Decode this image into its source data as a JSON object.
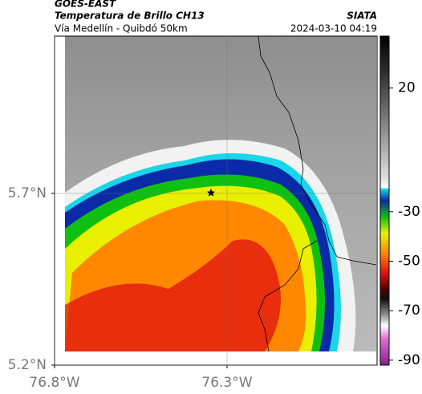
{
  "header": {
    "satellite": "GOES-EAST",
    "product": "Temperatura de Brillo CH13",
    "region": "Vía Medellín - Quibdó 50km",
    "source": "SIATA",
    "datetime": "2024-03-10 04:19"
  },
  "map": {
    "xlim": [
      -76.8,
      -75.865
    ],
    "ylim": [
      5.2,
      6.158
    ],
    "xticks": [
      {
        "value": -76.8,
        "label": "76.8°W"
      },
      {
        "value": -76.3,
        "label": "76.3°W"
      }
    ],
    "yticks": [
      {
        "value": 5.7,
        "label": "5.7°N"
      },
      {
        "value": 5.2,
        "label": "5.2°N"
      }
    ],
    "grid": true
  },
  "colorbar": {
    "clim": [
      -92,
      41
    ],
    "ticks": [
      20,
      -30,
      -50,
      -70,
      -90
    ]
  }
}
